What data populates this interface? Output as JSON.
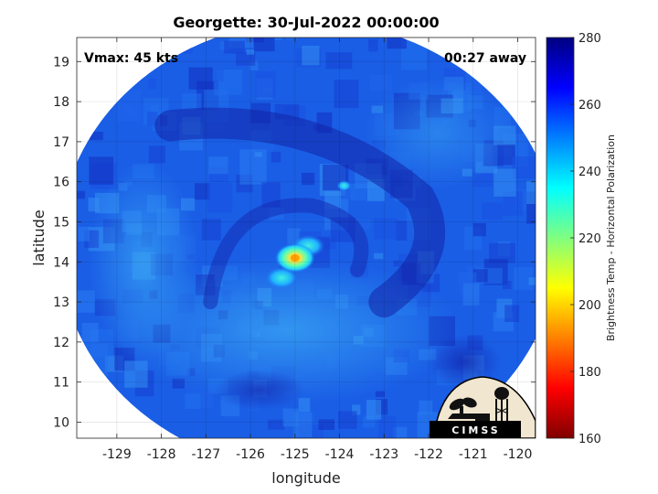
{
  "chart_data": {
    "type": "heatmap",
    "title": "Georgette: 30-Jul-2022 00:00:00",
    "xlabel": "longitude",
    "ylabel": "latitude",
    "xlim": [
      -129.9,
      -119.6
    ],
    "ylim": [
      9.6,
      19.6
    ],
    "x_ticks": [
      "-129",
      "-128",
      "-127",
      "-126",
      "-125",
      "-124",
      "-123",
      "-122",
      "-121",
      "-120"
    ],
    "y_ticks": [
      "10",
      "11",
      "12",
      "13",
      "14",
      "15",
      "16",
      "17",
      "18",
      "19"
    ],
    "grid": true,
    "annotations": {
      "top_left": "Vmax: 45 kts",
      "top_right": "00:27 away"
    },
    "colorbar": {
      "label": "Brightness Temp - Horizontal Polarization",
      "range": [
        160,
        280
      ],
      "ticks": [
        "280",
        "260",
        "240",
        "220",
        "200",
        "180",
        "160"
      ],
      "colormap": [
        "#800000",
        "#ff0000",
        "#ff8000",
        "#ffff00",
        "#80ff80",
        "#00ffff",
        "#0080ff",
        "#0000ff",
        "#000080"
      ]
    },
    "swath": {
      "center_lon": -124.7,
      "center_lat": 14.4,
      "radius_deg": 5.6
    },
    "storm_center": {
      "lon": -125.0,
      "lat": 14.1,
      "min_temp": 205
    },
    "cold_features": [
      {
        "lon": -124.7,
        "lat": 14.4,
        "temp": 228
      },
      {
        "lon": -125.3,
        "lat": 13.6,
        "temp": 235
      },
      {
        "lon": -123.9,
        "lat": 15.9,
        "temp": 245
      }
    ],
    "background_temp_range": [
      245,
      270
    ]
  },
  "logo": {
    "text": "CIMSS"
  },
  "colors": {
    "swath_base": "#1a5ee6",
    "swath_warm": "#1030c8",
    "swath_cool": "#2e8ef0"
  }
}
